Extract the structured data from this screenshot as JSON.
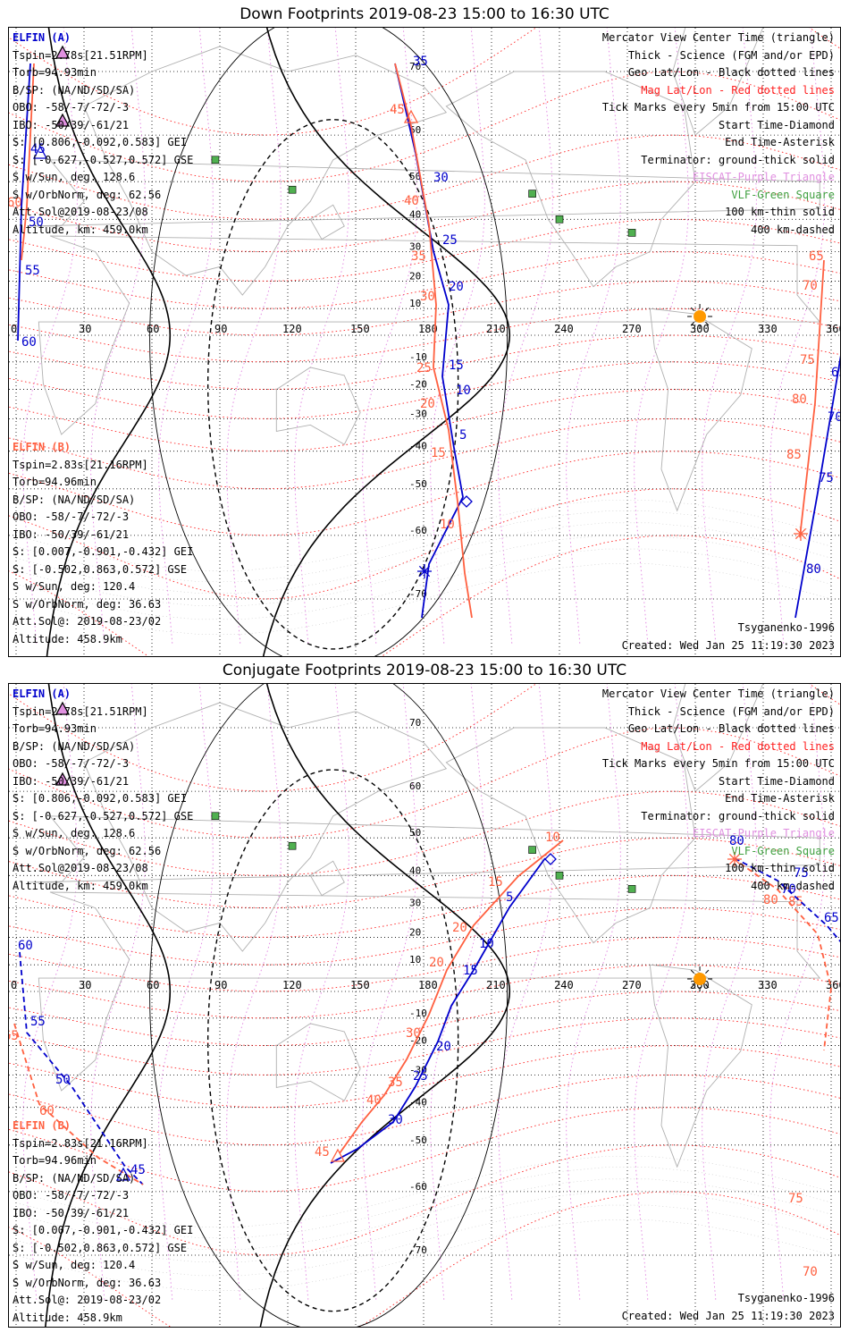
{
  "top": {
    "title": "Down Footprints 2019-08-23 15:00 to 16:30 UTC",
    "elfin_a": {
      "header": "ELFIN (A)",
      "lines": [
        "Tspin=2.78s[21.51RPM]",
        "Torb=94.93min",
        "B/SP: (NA/ND/SD/SA)",
        "OBO: -58/-7/-72/-3",
        "IBO: -50/39/-61/21",
        "S: [0.806,-0.092,0.583] GEI",
        "S: [-0.627,-0.527,0.572] GSE",
        "S w/Sun, deg: 128.6",
        "S w/OrbNorm, deg: 62.56",
        "Att.Sol@2019-08-23/08",
        "Altitude, km: 459.0km"
      ]
    },
    "elfin_b": {
      "header": "ELFIN (B)",
      "lines": [
        "Tspin=2.83s[21.16RPM]",
        "Torb=94.96min",
        "B/SP: (NA/ND/SD/SA)",
        "OBO: -58/-7/-72/-3",
        "IBO: -50/39/-61/21",
        "S: [0.007,-0.901,-0.432] GEI",
        "S: [-0.502,0.863,0.572] GSE",
        "S w/Sun, deg: 120.4",
        "S w/OrbNorm, deg: 36.63",
        "Att.Sol@: 2019-08-23/02",
        "Altitude: 458.9km"
      ]
    },
    "footer_right": [
      "Tsyganenko-1996",
      "Created: Wed Jan 25 11:19:30 2023"
    ],
    "track_a_ticks": [
      "35",
      "30",
      "25",
      "20",
      "15",
      "10",
      "5",
      "45",
      "50",
      "55",
      "60",
      "65",
      "70",
      "75",
      "80"
    ],
    "track_b_ticks": [
      "45",
      "40",
      "35",
      "30",
      "25",
      "20",
      "15",
      "10",
      "60",
      "65",
      "70",
      "75",
      "80",
      "85"
    ]
  },
  "bottom": {
    "title": "Conjugate Footprints 2019-08-23 15:00 to 16:30 UTC",
    "elfin_a": {
      "header": "ELFIN (A)",
      "lines": [
        "Tspin=2.78s[21.51RPM]",
        "Torb=94.93min",
        "B/SP: (NA/ND/SD/SA)",
        "OBO: -58/-7/-72/-3",
        "IBO: -50/39/-61/21",
        "S: [0.806,-0.092,0.583] GEI",
        "S: [-0.627,-0.527,0.572] GSE",
        "S w/Sun, deg: 128.6",
        "S w/OrbNorm, deg: 62.56",
        "Att.Sol@2019-08-23/08",
        "Altitude, km: 459.0km"
      ]
    },
    "elfin_b": {
      "header": "ELFIN (B)",
      "lines": [
        "Tspin=2.83s[21.16RPM]",
        "Torb=94.96min",
        "B/SP: (NA/ND/SD/SA)",
        "OBO: -58/-7/-72/-3",
        "IBO: -50/39/-61/21",
        "S: [0.007,-0.901,-0.432] GEI",
        "S: [-0.502,0.863,0.572] GSE",
        "S w/Sun, deg: 120.4",
        "S w/OrbNorm, deg: 36.63",
        "Att.Sol@: 2019-08-23/02",
        "Altitude: 458.9km"
      ]
    },
    "footer_right": [
      "Tsyganenko-1996",
      "Created: Wed Jan 25 11:19:30 2023"
    ],
    "track_a_ticks": [
      "5",
      "10",
      "15",
      "20",
      "25",
      "30",
      "55",
      "50",
      "45",
      "60",
      "65",
      "70",
      "75",
      "80"
    ],
    "track_b_ticks": [
      "10",
      "15",
      "20",
      "20",
      "30",
      "35",
      "40",
      "45",
      "65",
      "60",
      "70",
      "75",
      "80",
      "85"
    ]
  },
  "legend": {
    "black": [
      "Mercator View Center Time (triangle)",
      "Thick - Science (FGM and/or EPD)",
      "Geo Lat/Lon - Black dotted lines"
    ],
    "red": "Mag Lat/Lon - Red dotted lines",
    "black2": [
      "Tick Marks every 5min from 15:00 UTC",
      "Start Time-Diamond",
      "End Time-Asterisk",
      "Terminator: ground-thick solid"
    ],
    "purple": "EISCAT-Purple Triangle",
    "green": "VLF-Green Square",
    "black3": [
      "100 km-thin solid",
      "400 km-dashed"
    ]
  },
  "lon_labels": [
    "0",
    "30",
    "60",
    "90",
    "120",
    "150",
    "180",
    "210",
    "240",
    "270",
    "300",
    "330",
    "360"
  ],
  "lat_labels_top": [
    "70",
    "60",
    "50",
    "40",
    "30",
    "20",
    "10",
    "-10",
    "-20",
    "-30",
    "-40",
    "-50",
    "-60",
    "-70"
  ],
  "lat_labels_bot": [
    "70",
    "60",
    "50",
    "40",
    "30",
    "20",
    "10",
    "-10",
    "-20",
    "-30",
    "-40",
    "-50",
    "-60",
    "-70"
  ],
  "colors": {
    "elfin_a": "#0000cc",
    "elfin_b": "#ff6040",
    "mag_grid": "#ff2020",
    "geo_grid": "#000000",
    "sun": "#ff9900",
    "vlf": "#40a040",
    "eiscat": "#e090e0"
  },
  "icons": [
    "sun-icon",
    "diamond-start-icon",
    "asterisk-end-icon",
    "triangle-center-icon",
    "vlf-square-icon"
  ]
}
